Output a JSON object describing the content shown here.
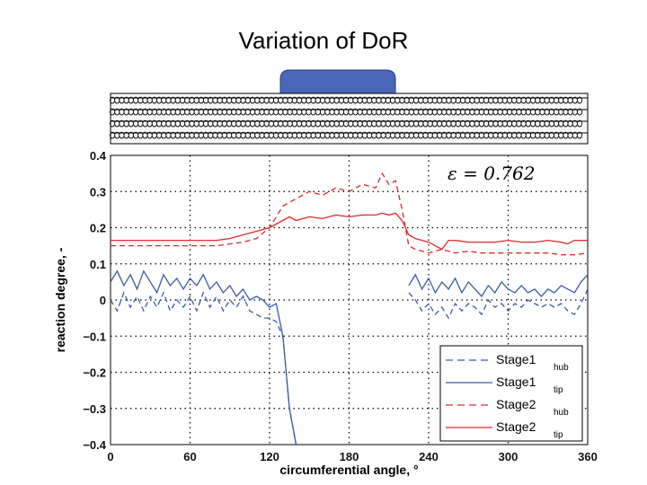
{
  "slide": {
    "title": "Variation of DoR"
  },
  "colors": {
    "stage1": "#3a5ea8",
    "stage2": "#e02a2a",
    "rotor_top": "#4a66b8"
  },
  "chart_data": {
    "type": "line",
    "title": "",
    "xlabel": "circumferential angle, °",
    "ylabel": "reaction degree, -",
    "xlim": [
      0,
      360
    ],
    "ylim": [
      -0.4,
      0.4
    ],
    "xticks": [
      "0",
      "60",
      "120",
      "180",
      "240",
      "300",
      "360"
    ],
    "yticks": [
      "0.4",
      "0.3",
      "0.2",
      "0.1",
      "0",
      "−0.1",
      "−0.2",
      "−0.3",
      "−0.4"
    ],
    "grid": true,
    "legend_position": "bottom-right",
    "annotation": "ε = 0.762",
    "series": [
      {
        "name": "Stage1",
        "subscript": "hub",
        "color": "#3a5ea8",
        "style": "dashed",
        "x": [
          0,
          5,
          10,
          15,
          20,
          25,
          30,
          35,
          40,
          45,
          50,
          55,
          60,
          65,
          70,
          75,
          80,
          85,
          90,
          95,
          100,
          105,
          110,
          115,
          120,
          125,
          130,
          135,
          140
        ],
        "y": [
          0.0,
          -0.03,
          0.02,
          -0.02,
          0.01,
          -0.03,
          0.01,
          -0.02,
          0.02,
          -0.03,
          0.0,
          -0.02,
          0.01,
          -0.03,
          0.02,
          -0.02,
          0.01,
          -0.03,
          0.0,
          -0.02,
          0.01,
          -0.03,
          -0.04,
          -0.05,
          -0.05,
          -0.06,
          -0.1,
          -0.3,
          -0.4
        ]
      },
      {
        "name": "Stage1",
        "subscript": "tip",
        "color": "#3a5ea8",
        "style": "solid",
        "x": [
          0,
          5,
          10,
          15,
          20,
          25,
          30,
          35,
          40,
          45,
          50,
          55,
          60,
          65,
          70,
          75,
          80,
          85,
          90,
          95,
          100,
          105,
          110,
          115,
          120,
          125,
          130,
          135,
          140
        ],
        "y": [
          0.05,
          0.08,
          0.04,
          0.07,
          0.03,
          0.08,
          0.05,
          0.02,
          0.07,
          0.04,
          0.06,
          0.03,
          0.06,
          0.04,
          0.07,
          0.03,
          0.05,
          0.02,
          0.04,
          0.01,
          0.03,
          0.0,
          0.01,
          0.0,
          -0.02,
          -0.01,
          -0.1,
          -0.3,
          -0.4
        ]
      },
      {
        "name": "Stage1",
        "subscript": "hub",
        "color": "#3a5ea8",
        "style": "dashed",
        "x": [
          225,
          230,
          235,
          240,
          245,
          250,
          255,
          260,
          265,
          270,
          275,
          280,
          285,
          290,
          295,
          300,
          305,
          310,
          315,
          320,
          325,
          330,
          335,
          340,
          345,
          350,
          355,
          360
        ],
        "y": [
          0.02,
          0.0,
          -0.03,
          -0.01,
          -0.04,
          -0.02,
          -0.05,
          -0.01,
          -0.03,
          -0.01,
          -0.02,
          -0.04,
          0.0,
          -0.02,
          -0.01,
          -0.03,
          -0.01,
          -0.02,
          0.0,
          -0.01,
          -0.02,
          -0.01,
          -0.02,
          -0.01,
          -0.03,
          -0.04,
          -0.01,
          0.03
        ]
      },
      {
        "name": "Stage1",
        "subscript": "tip",
        "color": "#3a5ea8",
        "style": "solid",
        "x": [
          225,
          230,
          235,
          240,
          245,
          250,
          255,
          260,
          265,
          270,
          275,
          280,
          285,
          290,
          295,
          300,
          305,
          310,
          315,
          320,
          325,
          330,
          335,
          340,
          345,
          350,
          355,
          360
        ],
        "y": [
          0.04,
          0.07,
          0.03,
          0.06,
          0.02,
          0.05,
          0.03,
          0.06,
          0.02,
          0.05,
          0.03,
          0.01,
          0.04,
          0.02,
          0.05,
          0.03,
          0.02,
          0.04,
          0.02,
          0.03,
          0.01,
          0.03,
          0.02,
          0.04,
          0.03,
          0.02,
          0.05,
          0.07
        ]
      },
      {
        "name": "Stage2",
        "subscript": "hub",
        "color": "#e02a2a",
        "style": "dashed",
        "x": [
          0,
          20,
          40,
          60,
          80,
          90,
          100,
          110,
          120,
          125,
          130,
          135,
          140,
          150,
          160,
          170,
          180,
          190,
          200,
          205,
          210,
          215,
          220,
          225,
          230,
          240,
          250,
          260,
          270,
          280,
          290,
          300,
          310,
          320,
          330,
          340,
          350,
          360
        ],
        "y": [
          0.15,
          0.15,
          0.15,
          0.15,
          0.15,
          0.155,
          0.16,
          0.17,
          0.2,
          0.23,
          0.26,
          0.27,
          0.28,
          0.3,
          0.29,
          0.31,
          0.3,
          0.32,
          0.31,
          0.35,
          0.32,
          0.33,
          0.25,
          0.15,
          0.14,
          0.13,
          0.14,
          0.13,
          0.135,
          0.13,
          0.13,
          0.13,
          0.13,
          0.13,
          0.13,
          0.125,
          0.125,
          0.13
        ]
      },
      {
        "name": "Stage2",
        "subscript": "tip",
        "color": "#e02a2a",
        "style": "solid",
        "x": [
          0,
          20,
          40,
          60,
          80,
          90,
          100,
          110,
          120,
          125,
          130,
          135,
          140,
          150,
          160,
          170,
          180,
          190,
          200,
          205,
          210,
          215,
          220,
          225,
          230,
          240,
          250,
          255,
          260,
          270,
          280,
          290,
          300,
          310,
          320,
          330,
          340,
          345,
          350,
          360
        ],
        "y": [
          0.165,
          0.165,
          0.165,
          0.165,
          0.165,
          0.17,
          0.18,
          0.19,
          0.2,
          0.21,
          0.22,
          0.23,
          0.22,
          0.23,
          0.225,
          0.235,
          0.23,
          0.235,
          0.235,
          0.24,
          0.235,
          0.24,
          0.22,
          0.18,
          0.17,
          0.16,
          0.14,
          0.165,
          0.165,
          0.16,
          0.16,
          0.16,
          0.165,
          0.16,
          0.16,
          0.165,
          0.16,
          0.155,
          0.165,
          0.165
        ]
      }
    ]
  }
}
